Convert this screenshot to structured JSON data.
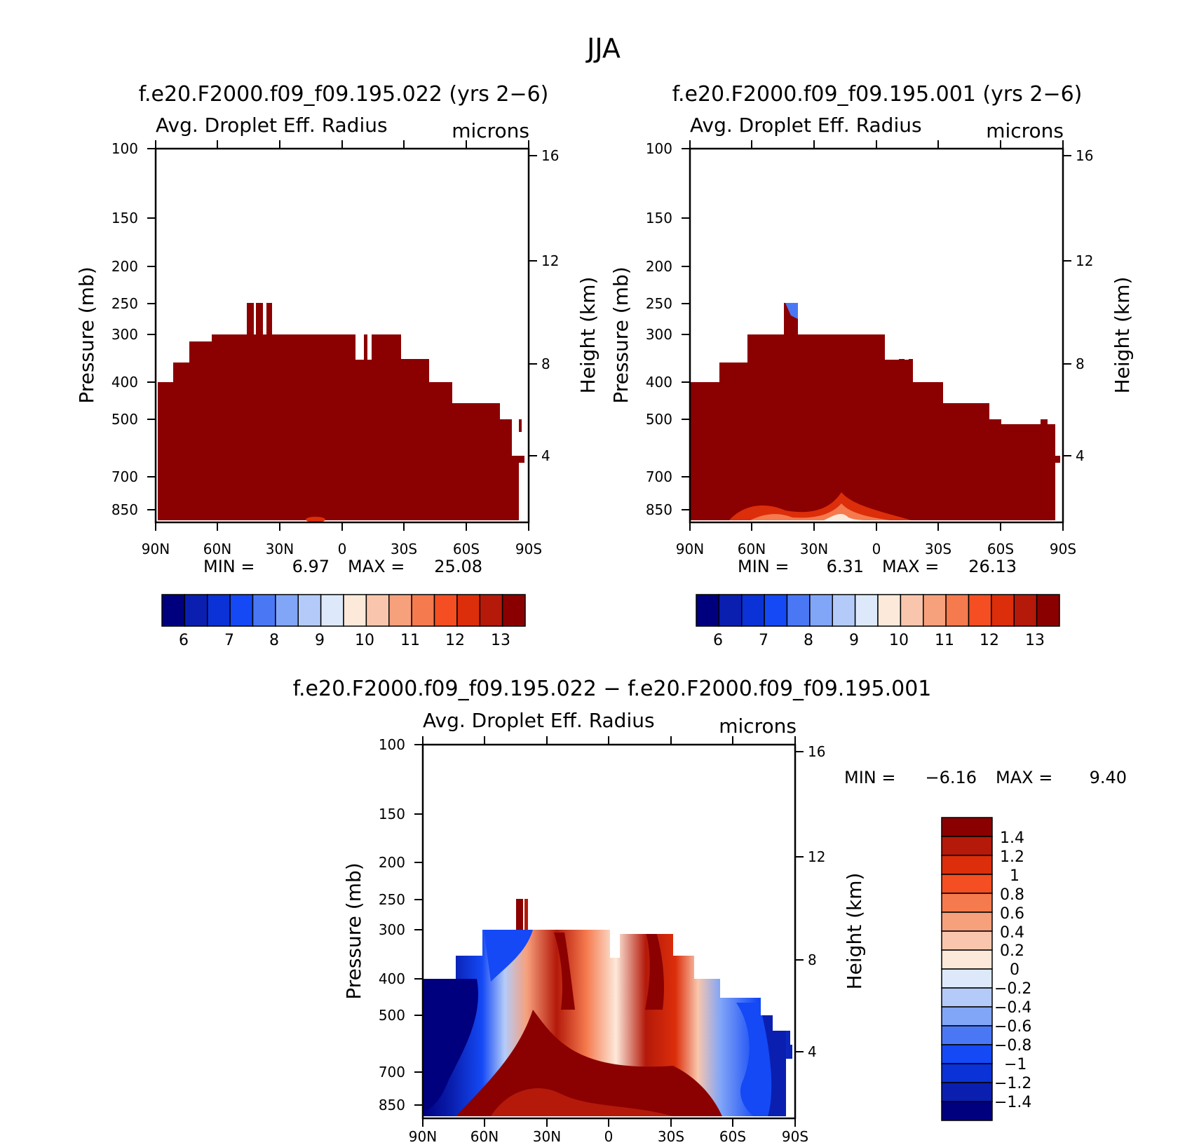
{
  "figure_title": "JJA",
  "chart_data": [
    {
      "type": "heatmap",
      "title": "f.e20.F2000.f09_f09.195.022 (yrs 2−6)",
      "subtitle_left": "Avg. Droplet Eff. Radius",
      "subtitle_right": "microns",
      "ylabel": "Pressure (mb)",
      "ylabel_right": "Height (km)",
      "x_ticks": [
        "90N",
        "60N",
        "30N",
        "0",
        "30S",
        "60S",
        "90S"
      ],
      "y_ticks": [
        "100",
        "150",
        "200",
        "250",
        "300",
        "400",
        "500",
        "700",
        "850"
      ],
      "y_ticks_right": [
        "16",
        "12",
        "8",
        "4"
      ],
      "min_text": "MIN =",
      "min_value": "6.97",
      "max_text": "MAX =",
      "max_value": "25.08",
      "colorbar_labels": [
        "6",
        "7",
        "8",
        "9",
        "10",
        "11",
        "12",
        "13"
      ]
    },
    {
      "type": "heatmap",
      "title": "f.e20.F2000.f09_f09.195.001 (yrs 2−6)",
      "subtitle_left": "Avg. Droplet Eff. Radius",
      "subtitle_right": "microns",
      "ylabel": "Pressure (mb)",
      "ylabel_right": "Height (km)",
      "x_ticks": [
        "90N",
        "60N",
        "30N",
        "0",
        "30S",
        "60S",
        "90S"
      ],
      "y_ticks": [
        "100",
        "150",
        "200",
        "250",
        "300",
        "400",
        "500",
        "700",
        "850"
      ],
      "y_ticks_right": [
        "16",
        "12",
        "8",
        "4"
      ],
      "min_text": "MIN =",
      "min_value": "6.31",
      "max_text": "MAX =",
      "max_value": "26.13",
      "colorbar_labels": [
        "6",
        "7",
        "8",
        "9",
        "10",
        "11",
        "12",
        "13"
      ]
    },
    {
      "type": "heatmap",
      "title": "f.e20.F2000.f09_f09.195.022 − f.e20.F2000.f09_f09.195.001",
      "subtitle_left": "Avg. Droplet Eff. Radius",
      "subtitle_right": "microns",
      "ylabel": "Pressure (mb)",
      "ylabel_right": "Height (km)",
      "x_ticks": [
        "90N",
        "60N",
        "30N",
        "0",
        "30S",
        "60S",
        "90S"
      ],
      "y_ticks": [
        "100",
        "150",
        "200",
        "250",
        "300",
        "400",
        "500",
        "700",
        "850"
      ],
      "y_ticks_right": [
        "16",
        "12",
        "8",
        "4"
      ],
      "min_text": "MIN =",
      "min_value": "−6.16",
      "max_text": "MAX =",
      "max_value": "9.40",
      "colorbar_labels": [
        "1.4",
        "1.2",
        "1",
        "0.8",
        "0.6",
        "0.4",
        "0.2",
        "0",
        "−0.2",
        "−0.4",
        "−0.6",
        "−0.8",
        "−1",
        "−1.2",
        "−1.4"
      ]
    }
  ],
  "colors": {
    "palette": [
      "#00007f",
      "#0a1fb0",
      "#0a32d6",
      "#1449f5",
      "#4a78f5",
      "#82a6f7",
      "#b4cbf9",
      "#dde9fb",
      "#fde9da",
      "#f9c6ad",
      "#f7a07c",
      "#f57a4e",
      "#f44e22",
      "#dc2e0a",
      "#b4190a",
      "#8a0000"
    ],
    "field_max": "#8b0000",
    "axis": "#000000"
  }
}
